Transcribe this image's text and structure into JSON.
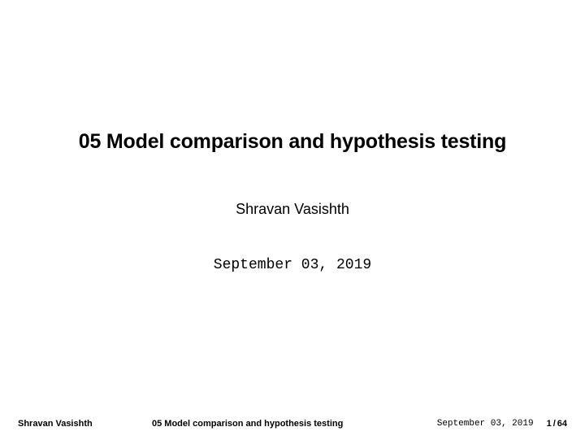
{
  "slide": {
    "title": "05 Model comparison and hypothesis testing",
    "author": "Shravan Vasishth",
    "date": "September 03, 2019"
  },
  "footer": {
    "author": "Shravan Vasishth",
    "title": "05 Model comparison and hypothesis testing",
    "date": "September 03, 2019",
    "page_current": "1",
    "page_total": "64"
  },
  "style": {
    "background_color": "#ffffff",
    "text_color": "#000000",
    "title_fontsize": 25,
    "author_fontsize": 18,
    "date_fontsize": 18,
    "footer_fontsize": 11,
    "title_font": "sans-serif-bold",
    "author_font": "sans-serif",
    "date_font": "monospace"
  }
}
